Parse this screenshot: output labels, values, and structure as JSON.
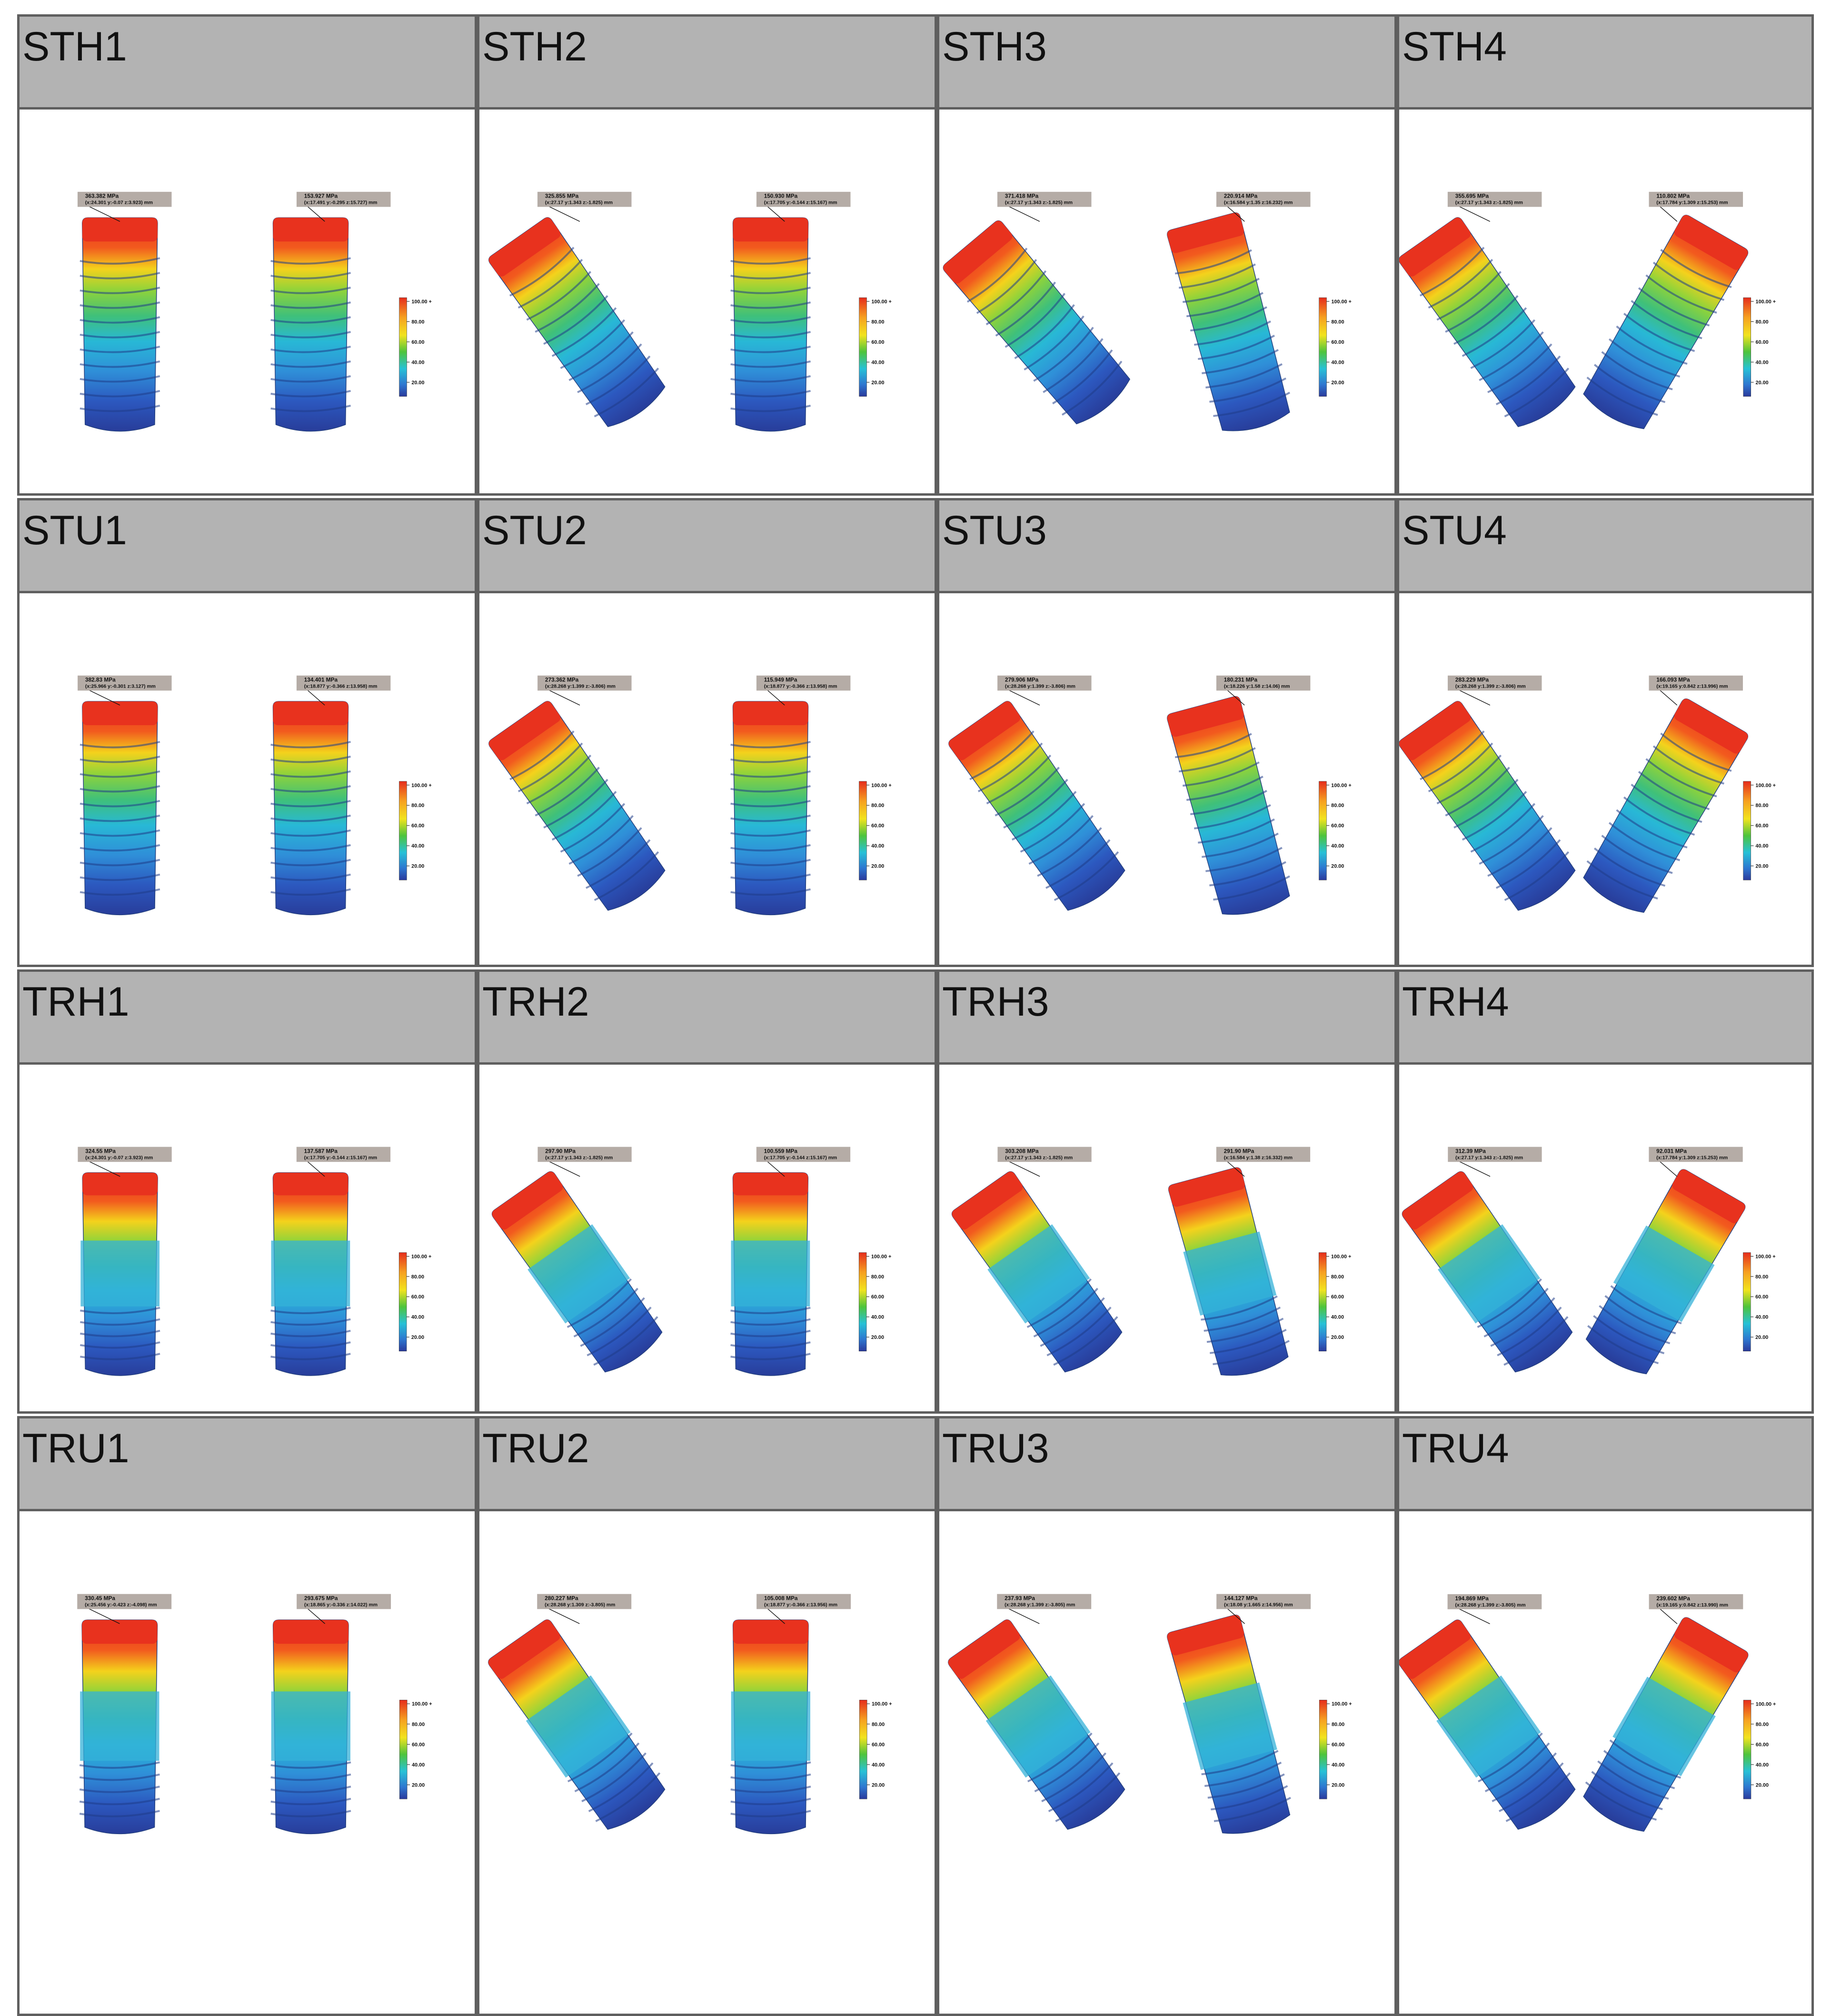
{
  "colors": {
    "header_bg": "#b3b3b3",
    "grid_line": "#5f5f5f",
    "label_box": "#b5aca6"
  },
  "scale_ticks": [
    "100.00 +",
    "80.00",
    "60.00",
    "40.00",
    "20.00"
  ],
  "panels": [
    {
      "title": "STH1",
      "shape": "cyl",
      "left": {
        "tilt": 0,
        "label": "363.382 MPa",
        "coord": "(x:24.301 y:-0.07 z:3.923) mm"
      },
      "right": {
        "tilt": 0,
        "label": "153.927 MPa",
        "coord": "(x:17.491 y:-0.295 z:15.727) mm"
      }
    },
    {
      "title": "STH2",
      "shape": "cyl",
      "left": {
        "tilt": -35,
        "label": "325.855 MPa",
        "coord": "(x:27.17 y:1.343 z:-1.825) mm"
      },
      "right": {
        "tilt": 0,
        "label": "150.930 MPa",
        "coord": "(x:17.705 y:-0.144 z:15.167) mm"
      }
    },
    {
      "title": "STH3",
      "shape": "cyl",
      "left": {
        "tilt": -40,
        "label": "371.418 MPa",
        "coord": "(x:27.17 y:1.343 z:-1.825) mm"
      },
      "right": {
        "tilt": -15,
        "label": "220.914 MPa",
        "coord": "(x:16.584 y:1.35 z:16.232) mm"
      }
    },
    {
      "title": "STH4",
      "shape": "cyl",
      "left": {
        "tilt": -35,
        "label": "355.695 MPa",
        "coord": "(x:27.17 y:1.343 z:-1.825) mm"
      },
      "right": {
        "tilt": 30,
        "label": "110.802 MPa",
        "coord": "(x:17.784 y:1.309 z:15.253) mm"
      }
    },
    {
      "title": "STU1",
      "shape": "cyl",
      "left": {
        "tilt": 0,
        "label": "382.83 MPa",
        "coord": "(x:25.966 y:-0.301 z:3.127) mm"
      },
      "right": {
        "tilt": 0,
        "label": "134.401 MPa",
        "coord": "(x:18.877 y:-0.366 z:13.958) mm"
      }
    },
    {
      "title": "STU2",
      "shape": "cyl",
      "left": {
        "tilt": -35,
        "label": "273.362 MPa",
        "coord": "(x:28.268 y:1.399 z:-3.806) mm"
      },
      "right": {
        "tilt": 0,
        "label": "115.949 MPa",
        "coord": "(x:18.877 y:-0.366 z:13.958) mm"
      }
    },
    {
      "title": "STU3",
      "shape": "cyl",
      "left": {
        "tilt": -35,
        "label": "279.906 MPa",
        "coord": "(x:28.268 y:1.399 z:-3.806) mm"
      },
      "right": {
        "tilt": -15,
        "label": "180.231 MPa",
        "coord": "(x:18.226 y:1.58 z:14.06) mm"
      }
    },
    {
      "title": "STU4",
      "shape": "cyl",
      "left": {
        "tilt": -35,
        "label": "283.229 MPa",
        "coord": "(x:28.268 y:1.399 z:-3.806) mm"
      },
      "right": {
        "tilt": 30,
        "label": "166.093 MPa",
        "coord": "(x:19.165 y:0.842 z:13.996) mm"
      }
    },
    {
      "title": "TRH1",
      "shape": "tl",
      "left": {
        "tilt": 0,
        "label": "324.55 MPa",
        "coord": "(x:24.301 y:-0.07 z:3.923) mm"
      },
      "right": {
        "tilt": 0,
        "label": "137.587 MPa",
        "coord": "(x:17.705 y:-0.144 z:15.167) mm"
      }
    },
    {
      "title": "TRH2",
      "shape": "tl",
      "left": {
        "tilt": -35,
        "label": "297.90 MPa",
        "coord": "(x:27.17 y:1.343 z:-1.825) mm"
      },
      "right": {
        "tilt": 0,
        "label": "100.559 MPa",
        "coord": "(x:17.705 y:-0.144 z:15.167) mm"
      }
    },
    {
      "title": "TRH3",
      "shape": "tl",
      "left": {
        "tilt": -35,
        "label": "303.208 MPa",
        "coord": "(x:27.17 y:1.343 z:-1.825) mm"
      },
      "right": {
        "tilt": -15,
        "label": "291.90 MPa",
        "coord": "(x:16.584 y:1.38 z:16.332) mm"
      }
    },
    {
      "title": "TRH4",
      "shape": "tl",
      "left": {
        "tilt": -35,
        "label": "312.39 MPa",
        "coord": "(x:27.17 y:1.343 z:-1.825) mm"
      },
      "right": {
        "tilt": 30,
        "label": "92.031 MPa",
        "coord": "(x:17.784 y:1.309 z:15.253) mm"
      }
    },
    {
      "title": "TRU1",
      "shape": "tl",
      "left": {
        "tilt": 0,
        "label": "330.45 MPa",
        "coord": "(x:25.456 y:-0.423 z:-4.098) mm"
      },
      "right": {
        "tilt": 0,
        "label": "293.675 MPa",
        "coord": "(x:18.865 y:-0.336 z:14.022) mm"
      }
    },
    {
      "title": "TRU2",
      "shape": "tl",
      "left": {
        "tilt": -35,
        "label": "280.227 MPa",
        "coord": "(x:28.268 y:1.309 z:-3.805) mm"
      },
      "right": {
        "tilt": 0,
        "label": "105.008 MPa",
        "coord": "(x:18.877 y:-0.366 z:13.956) mm"
      }
    },
    {
      "title": "TRU3",
      "shape": "tl",
      "left": {
        "tilt": -35,
        "label": "237.93 MPa",
        "coord": "(x:28.268 y:1.399 z:-3.805) mm"
      },
      "right": {
        "tilt": -15,
        "label": "144.127 MPa",
        "coord": "(x:18.08 y:1.665 z:14.956) mm"
      }
    },
    {
      "title": "TRU4",
      "shape": "tl",
      "left": {
        "tilt": -35,
        "label": "194.869 MPa",
        "coord": "(x:28.268 y:1.399 z:-3.805) mm"
      },
      "right": {
        "tilt": 30,
        "label": "239.602 MPa",
        "coord": "(x:19.165 y:0.842 z:13.990) mm"
      }
    }
  ]
}
